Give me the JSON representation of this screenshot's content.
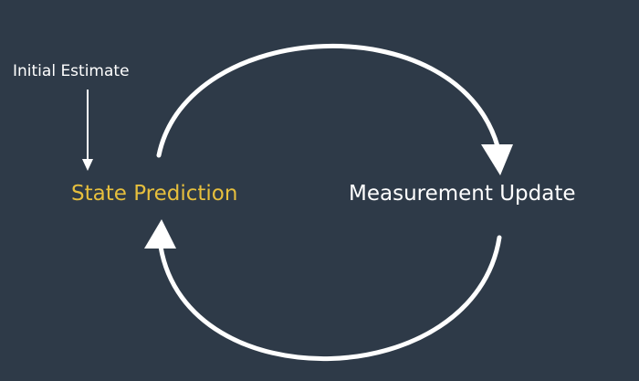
{
  "diagram": {
    "initial_label": "Initial Estimate",
    "state_label": "State Prediction",
    "measurement_label": "Measurement Update",
    "colors": {
      "background": "#2e3a48",
      "arrow": "#ffffff",
      "state_text": "#e6bf3d",
      "measurement_text": "#ffffff"
    }
  }
}
